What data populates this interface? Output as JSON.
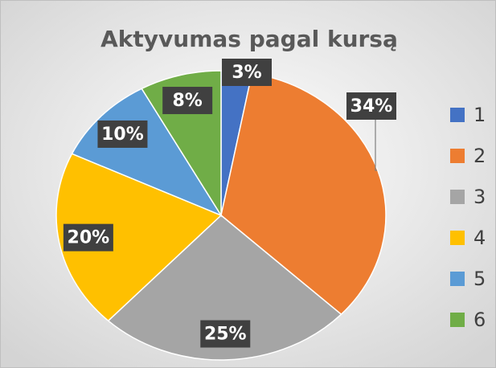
{
  "chart_data": {
    "type": "pie",
    "title": "Aktyvumas pagal kursą",
    "categories": [
      "1",
      "2",
      "3",
      "4",
      "5",
      "6"
    ],
    "values": [
      3,
      34,
      25,
      20,
      10,
      8
    ],
    "value_labels": [
      "3%",
      "34%",
      "25%",
      "20%",
      "10%",
      "8%"
    ],
    "colors": [
      "#4472c4",
      "#ed7d31",
      "#a5a5a5",
      "#ffc000",
      "#5b9bd5",
      "#70ad47"
    ],
    "legend": "right"
  }
}
